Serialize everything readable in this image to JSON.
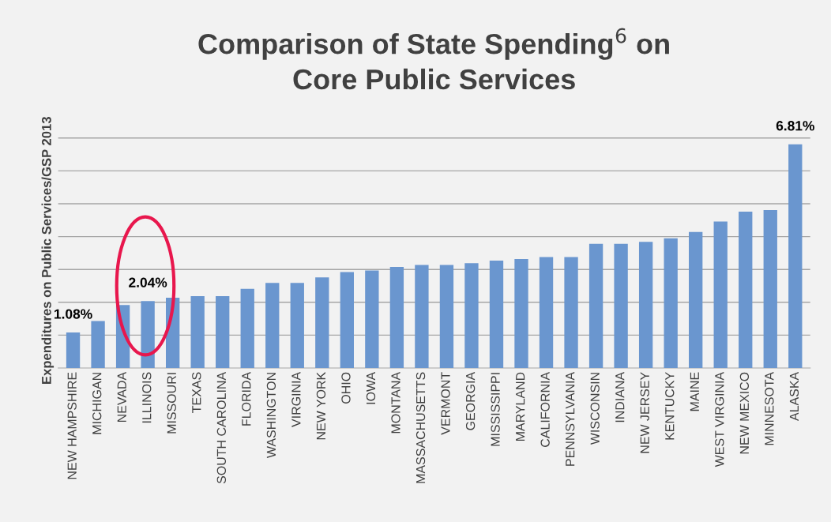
{
  "chart_data": {
    "type": "bar",
    "title": "Comparison of State Spending$^{6}$ on\nCore Public Services",
    "ylabel": "Expenditures on Public Services/GSP 2013",
    "categories": [
      "NEW HAMPSHIRE",
      "MICHIGAN",
      "NEVADA",
      "ILLINOIS",
      "MISSOURI",
      "TEXAS",
      "SOUTH CAROLINA",
      "FLORIDA",
      "WASHINGTON",
      "VIRGINIA",
      "NEW YORK",
      "OHIO",
      "IOWA",
      "MONTANA",
      "MASSACHUSETTS",
      "VERMONT",
      "GEORGIA",
      "MISSISSIPPI",
      "MARYLAND",
      "CALIFORNIA",
      "PENNSYLVANIA",
      "WISCONSIN",
      "INDIANA",
      "NEW JERSEY",
      "KENTUCKY",
      "MAINE",
      "WEST VIRGINIA",
      "NEW MEXICO",
      "MINNESOTA",
      "ALASKA"
    ],
    "values": [
      1.08,
      1.43,
      1.92,
      2.04,
      2.14,
      2.19,
      2.19,
      2.41,
      2.59,
      2.59,
      2.76,
      2.92,
      2.97,
      3.08,
      3.14,
      3.14,
      3.19,
      3.27,
      3.32,
      3.38,
      3.38,
      3.78,
      3.78,
      3.84,
      3.95,
      4.14,
      4.46,
      4.76,
      4.81,
      6.81
    ],
    "value_labels": [
      "1.08%",
      null,
      null,
      "2.04%",
      null,
      null,
      null,
      null,
      null,
      null,
      null,
      null,
      null,
      null,
      null,
      null,
      null,
      null,
      null,
      null,
      null,
      null,
      null,
      null,
      null,
      null,
      null,
      null,
      null,
      "6.81%"
    ],
    "color": "#6a96cf",
    "yticks": [
      {
        "value": 1,
        "label": null
      },
      {
        "value": 2,
        "label": null
      },
      {
        "value": 3,
        "label": null
      },
      {
        "value": 4,
        "label": null
      },
      {
        "value": 5,
        "label": null
      },
      {
        "value": 6,
        "label": null
      },
      {
        "value": 7,
        "label": null
      }
    ],
    "grid": "y",
    "tick_labels": "x",
    "legend": false
  }
}
